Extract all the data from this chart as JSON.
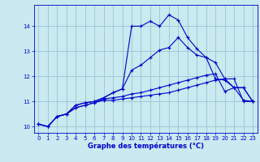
{
  "xlabel": "Graphe des températures (°C)",
  "bg_color": "#c8eaf0",
  "grid_color": "#a0c8d8",
  "line_color": "#0000cc",
  "xlim": [
    -0.5,
    23.5
  ],
  "ylim": [
    9.75,
    14.85
  ],
  "yticks": [
    10,
    11,
    12,
    13,
    14
  ],
  "xticks": [
    0,
    1,
    2,
    3,
    4,
    5,
    6,
    7,
    8,
    9,
    10,
    11,
    12,
    13,
    14,
    15,
    16,
    17,
    18,
    19,
    20,
    21,
    22,
    23
  ],
  "curve1_x": [
    0,
    1,
    2,
    3,
    4,
    5,
    6,
    7,
    8,
    9,
    10,
    11,
    12,
    13,
    14,
    15,
    16,
    17,
    18,
    19,
    20,
    21,
    22,
    23
  ],
  "curve1_y": [
    10.1,
    10.0,
    10.4,
    10.5,
    10.75,
    10.85,
    10.95,
    11.05,
    11.05,
    11.1,
    11.15,
    11.2,
    11.25,
    11.3,
    11.35,
    11.45,
    11.55,
    11.65,
    11.75,
    11.85,
    11.9,
    11.9,
    11.0,
    11.0
  ],
  "curve2_x": [
    0,
    1,
    2,
    3,
    4,
    5,
    6,
    7,
    8,
    9,
    10,
    11,
    12,
    13,
    14,
    15,
    16,
    17,
    18,
    19,
    20,
    21,
    22,
    23
  ],
  "curve2_y": [
    10.1,
    10.0,
    10.4,
    10.5,
    10.75,
    10.85,
    10.95,
    11.1,
    11.15,
    11.2,
    11.3,
    11.35,
    11.45,
    11.55,
    11.65,
    11.75,
    11.85,
    11.95,
    12.05,
    12.1,
    11.4,
    11.55,
    11.05,
    11.0
  ],
  "curve3_x": [
    0,
    1,
    2,
    3,
    4,
    5,
    6,
    7,
    8,
    9,
    10,
    11,
    12,
    13,
    14,
    15,
    16,
    17,
    18,
    19,
    20,
    21,
    22,
    23
  ],
  "curve3_y": [
    10.1,
    10.0,
    10.4,
    10.5,
    10.85,
    10.95,
    11.0,
    11.15,
    11.35,
    11.5,
    12.25,
    12.45,
    12.75,
    13.05,
    13.15,
    13.55,
    13.15,
    12.85,
    12.75,
    12.55,
    11.9,
    11.55,
    11.55,
    11.0
  ],
  "curve4_x": [
    0,
    1,
    2,
    3,
    4,
    5,
    6,
    7,
    8,
    9,
    10,
    11,
    12,
    13,
    14,
    15,
    16,
    17,
    18,
    19,
    20,
    21,
    22,
    23
  ],
  "curve4_y": [
    10.1,
    10.0,
    10.4,
    10.5,
    10.85,
    10.95,
    11.0,
    11.15,
    11.35,
    11.5,
    14.0,
    14.0,
    14.2,
    14.0,
    14.45,
    14.25,
    13.55,
    13.1,
    12.75,
    11.9,
    11.85,
    11.55,
    11.55,
    11.0
  ]
}
